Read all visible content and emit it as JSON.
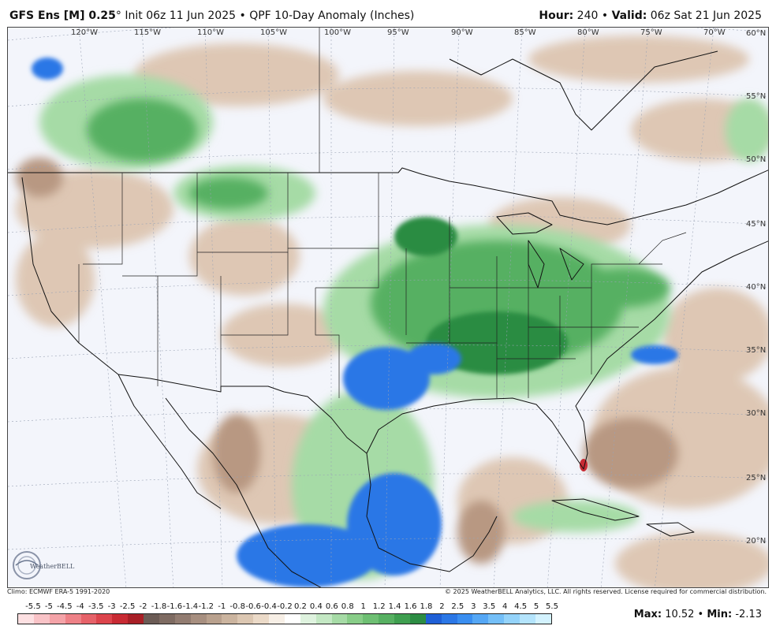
{
  "header": {
    "model": "GFS Ens [M] 0.25",
    "degree": "°",
    "init": " Init 06z 11 Jun 2025",
    "bullet": " • ",
    "product": "QPF 10-Day Anomaly (Inches)",
    "hour_label": "Hour:",
    "hour_value": " 240 • ",
    "valid_label": "Valid:",
    "valid_value": " 06z Sat 21 Jun 2025"
  },
  "longitudes": [
    "120°W",
    "115°W",
    "110°W",
    "105°W",
    "100°W",
    "95°W",
    "90°W",
    "85°W",
    "80°W",
    "75°W",
    "70°W"
  ],
  "latitudes": [
    "60°N",
    "55°N",
    "50°N",
    "45°N",
    "40°N",
    "35°N",
    "30°N",
    "25°N",
    "20°N"
  ],
  "footer": {
    "climo": "Climo: ECMWF ERA-5 1991-2020",
    "copyright": "© 2025 WeatherBELL Analytics, LLC. All rights reserved. License required for commercial distribution.",
    "max_label": "Max:",
    "max_value": " 10.52 • ",
    "min_label": "Min:",
    "min_value": " -2.13"
  },
  "logo_text": "WeatherBELL",
  "scale": {
    "labels": [
      "-5.5",
      "-5",
      "-4.5",
      "-4",
      "-3.5",
      "-3",
      "-2.5",
      "-2",
      "-1.8",
      "-1.6",
      "-1.4",
      "-1.2",
      "-1",
      "-0.8",
      "-0.6",
      "-0.4",
      "-0.2",
      "0.2",
      "0.4",
      "0.6",
      "0.8",
      "1",
      "1.2",
      "1.4",
      "1.6",
      "1.8",
      "2",
      "2.5",
      "3",
      "3.5",
      "4",
      "4.5",
      "5",
      "5.5"
    ],
    "colors": [
      "#fde0e2",
      "#f9c3c7",
      "#f4a3a8",
      "#ee8187",
      "#e66269",
      "#dc444c",
      "#c82a33",
      "#a81f26",
      "#6b5b55",
      "#7e6b62",
      "#927c71",
      "#a78f80",
      "#b9a18e",
      "#cbb49f",
      "#dcc7b2",
      "#ebdac8",
      "#f7efe6",
      "#ffffff",
      "#dff3df",
      "#c4e8c4",
      "#a6dba6",
      "#88cd88",
      "#6ebf73",
      "#57b062",
      "#3f9f50",
      "#2c8c43",
      "#1f5fd6",
      "#2b77e6",
      "#3a8ef0",
      "#55a7f5",
      "#74bff8",
      "#94d3fa",
      "#b4e4fc",
      "#d3f2fe"
    ]
  },
  "colors": {
    "map_bg": "#f3f5fb",
    "dry": "#dcc3ad",
    "dry_strong": "#b89882",
    "wet_light": "#a6dba6",
    "wet": "#57b062",
    "wet_strong": "#2c8c43",
    "very_wet": "#2b77e6",
    "extreme": "#c82a33",
    "border": "#111111"
  }
}
